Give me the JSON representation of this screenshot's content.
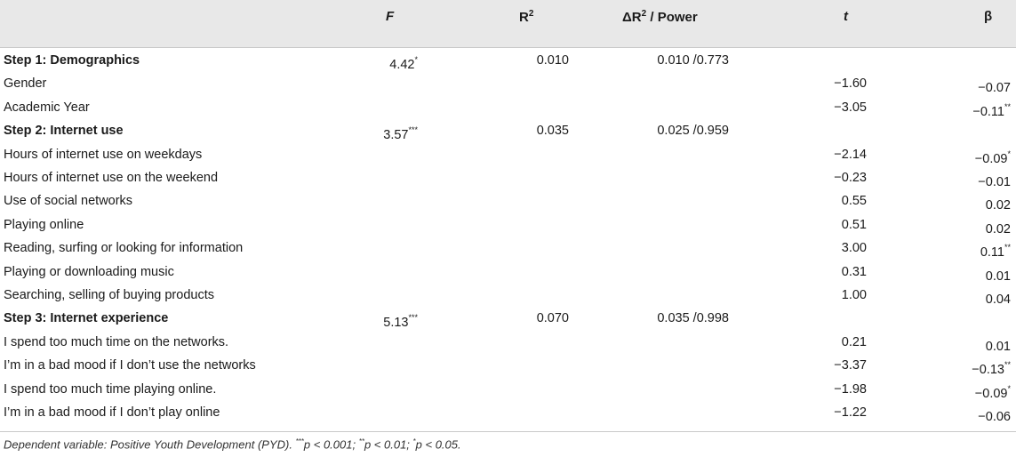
{
  "header": {
    "f": "F",
    "r2_base": "R",
    "r2_sup": "2",
    "dr2_prefix": "ΔR",
    "dr2_sup": "2",
    "dr2_suffix": " / Power",
    "t": "t",
    "beta": "β"
  },
  "rows": [
    {
      "label": "Step 1: Demographics",
      "step": true,
      "f": "4.42",
      "f_sup": "*",
      "r2": "0.010",
      "dr2": "0.010 /0.773",
      "t": "",
      "beta": "",
      "beta_sup": ""
    },
    {
      "label": "Gender",
      "step": false,
      "f": "",
      "f_sup": "",
      "r2": "",
      "dr2": "",
      "t": "−1.60",
      "beta": "−0.07",
      "beta_sup": ""
    },
    {
      "label": "Academic Year",
      "step": false,
      "f": "",
      "f_sup": "",
      "r2": "",
      "dr2": "",
      "t": "−3.05",
      "beta": "−0.11",
      "beta_sup": "**"
    },
    {
      "label": "Step 2: Internet use",
      "step": true,
      "f": "3.57",
      "f_sup": "***",
      "r2": "0.035",
      "dr2": "0.025 /0.959",
      "t": "",
      "beta": "",
      "beta_sup": ""
    },
    {
      "label": "Hours of internet use on weekdays",
      "step": false,
      "f": "",
      "f_sup": "",
      "r2": "",
      "dr2": "",
      "t": "−2.14",
      "beta": "−0.09",
      "beta_sup": "*"
    },
    {
      "label": "Hours of internet use on the weekend",
      "step": false,
      "f": "",
      "f_sup": "",
      "r2": "",
      "dr2": "",
      "t": "−0.23",
      "beta": "−0.01",
      "beta_sup": ""
    },
    {
      "label": "Use of social networks",
      "step": false,
      "f": "",
      "f_sup": "",
      "r2": "",
      "dr2": "",
      "t": "0.55",
      "beta": "0.02",
      "beta_sup": ""
    },
    {
      "label": "Playing online",
      "step": false,
      "f": "",
      "f_sup": "",
      "r2": "",
      "dr2": "",
      "t": "0.51",
      "beta": "0.02",
      "beta_sup": ""
    },
    {
      "label": "Reading, surfing or looking for information",
      "step": false,
      "f": "",
      "f_sup": "",
      "r2": "",
      "dr2": "",
      "t": "3.00",
      "beta": "0.11",
      "beta_sup": "**"
    },
    {
      "label": "Playing or downloading music",
      "step": false,
      "f": "",
      "f_sup": "",
      "r2": "",
      "dr2": "",
      "t": "0.31",
      "beta": "0.01",
      "beta_sup": ""
    },
    {
      "label": "Searching, selling of buying products",
      "step": false,
      "f": "",
      "f_sup": "",
      "r2": "",
      "dr2": "",
      "t": "1.00",
      "beta": "0.04",
      "beta_sup": ""
    },
    {
      "label": "Step 3: Internet experience",
      "step": true,
      "f": "5.13",
      "f_sup": "***",
      "r2": "0.070",
      "dr2": "0.035 /0.998",
      "t": "",
      "beta": "",
      "beta_sup": ""
    },
    {
      "label": "I spend too much time on the networks.",
      "step": false,
      "f": "",
      "f_sup": "",
      "r2": "",
      "dr2": "",
      "t": "0.21",
      "beta": "0.01",
      "beta_sup": ""
    },
    {
      "label": "I’m in a bad mood if I don’t use the networks",
      "step": false,
      "f": "",
      "f_sup": "",
      "r2": "",
      "dr2": "",
      "t": "−3.37",
      "beta": "−0.13",
      "beta_sup": "**"
    },
    {
      "label": "I spend too much time playing online.",
      "step": false,
      "f": "",
      "f_sup": "",
      "r2": "",
      "dr2": "",
      "t": "−1.98",
      "beta": "−0.09",
      "beta_sup": "*"
    },
    {
      "label": "I’m in a bad mood if I don’t play online",
      "step": false,
      "f": "",
      "f_sup": "",
      "r2": "",
      "dr2": "",
      "t": "−1.22",
      "beta": "−0.06",
      "beta_sup": ""
    }
  ],
  "footnote": {
    "lead": "Dependent variable: Positive Youth Development (PYD). ",
    "sig1_sup": "***",
    "sig1_text": "p < 0.001; ",
    "sig2_sup": "**",
    "sig2_text": "p < 0.01; ",
    "sig3_sup": "*",
    "sig3_text": "p < 0.05."
  }
}
